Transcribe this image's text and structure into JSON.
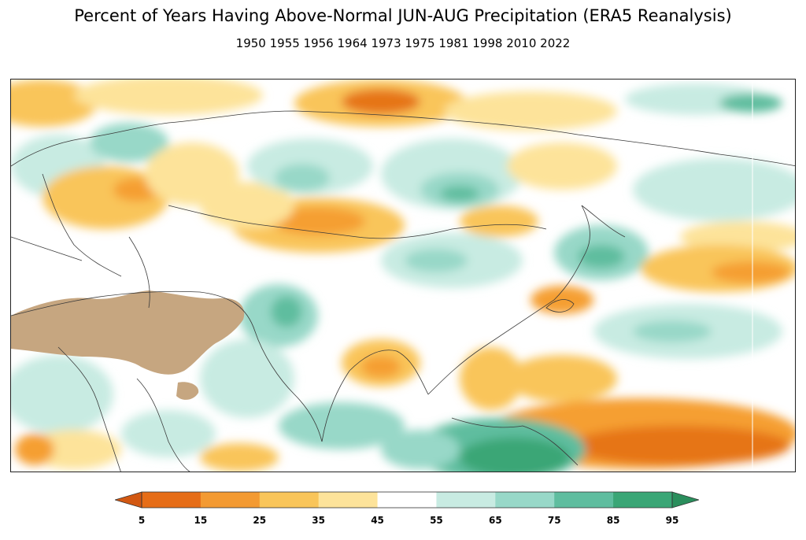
{
  "title": "Percent of Years Having Above-Normal JUN-AUG Precipitation (ERA5 Reanalysis)",
  "subtitle": "1950 1955 1956 1964 1973 1975 1981 1998 2010 2022",
  "colorbar": {
    "ticks": [
      "5",
      "15",
      "25",
      "35",
      "45",
      "55",
      "65",
      "75",
      "85",
      "95"
    ],
    "colors": [
      "#e66d17",
      "#f39a32",
      "#f9c55a",
      "#fde39a",
      "#ffffff",
      "#c8ebe2",
      "#98d8c8",
      "#5fbd9f",
      "#3aa676"
    ],
    "under_color": "#d25812",
    "over_color": "#2a8e5c"
  },
  "palette": {
    "orange_dark": "#e67519",
    "orange": "#f59f32",
    "orange_light": "#f9c55a",
    "yellow": "#fde39a",
    "white": "#ffffff",
    "teal_light": "#c8ebe2",
    "teal": "#98d8c8",
    "green": "#5fbd9f",
    "green_dark": "#3aa676",
    "mask_tan": "#c6a680",
    "coastline": "#3a3a3a"
  }
}
